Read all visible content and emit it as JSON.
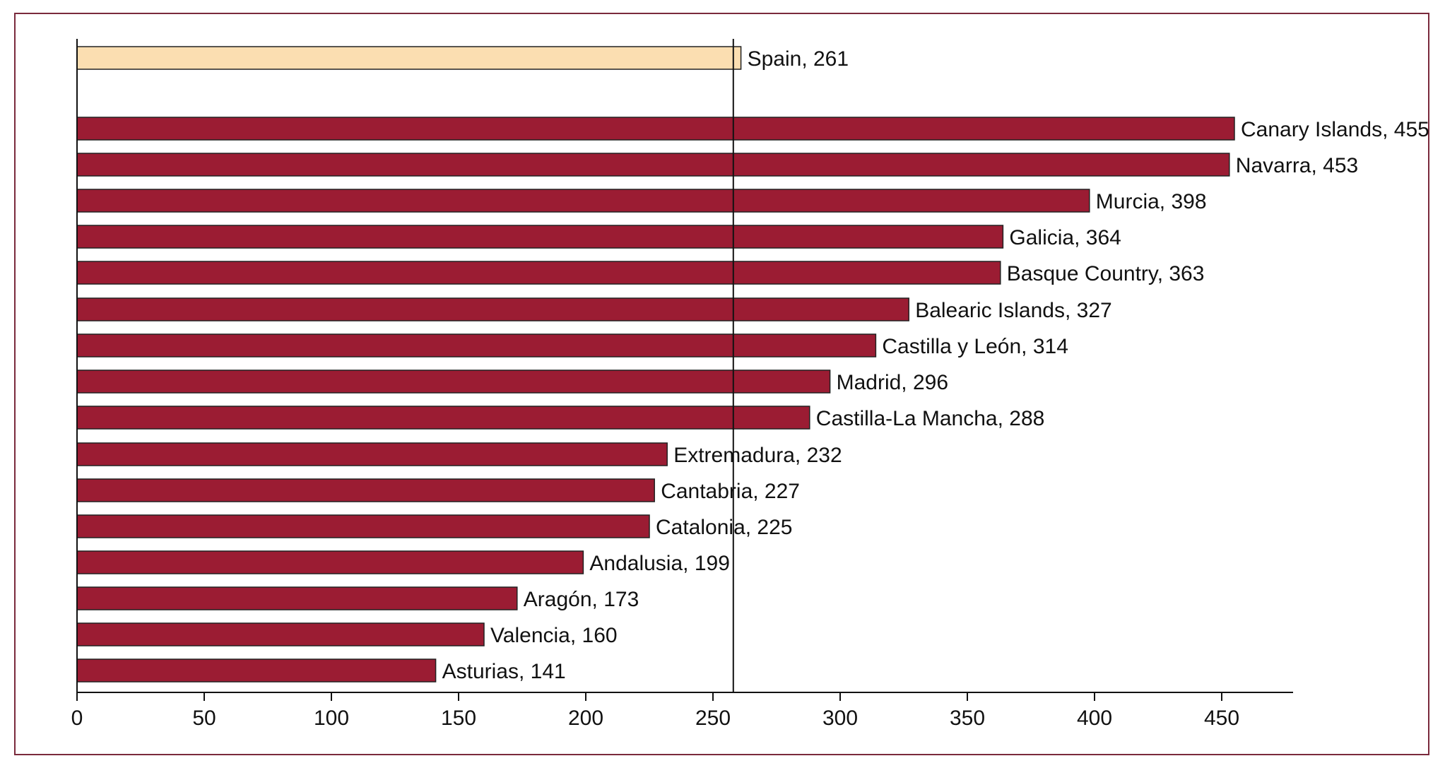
{
  "chart_data": {
    "type": "bar",
    "orientation": "horizontal",
    "categories": [
      "Spain",
      "Canary Islands",
      "Navarra",
      "Murcia",
      "Galicia",
      "Basque Country",
      "Balearic Islands",
      "Castilla y León",
      "Madrid",
      "Castilla-La Mancha",
      "Extremadura",
      "Cantabria",
      "Catalonia",
      "Andalusia",
      "Aragón",
      "Valencia",
      "Asturias"
    ],
    "values": [
      261,
      455,
      453,
      398,
      364,
      363,
      327,
      314,
      296,
      288,
      232,
      227,
      225,
      199,
      173,
      160,
      141
    ],
    "bar_labels": [
      "Spain, 261",
      "Canary Islands, 455",
      "Navarra, 453",
      "Murcia, 398",
      "Galicia, 364",
      "Basque Country, 363",
      "Balearic Islands, 327",
      "Castilla y León, 314",
      "Madrid, 296",
      "Castilla-La Mancha, 288",
      "Extremadura, 232",
      "Cantabria, 227",
      "Catalonia, 225",
      "Andalusia, 199",
      "Aragón, 173",
      "Valencia, 160",
      "Asturias, 141"
    ],
    "highlight_category": "Spain",
    "reference_line": 258,
    "xlim": [
      0,
      475
    ],
    "xticks": [
      0,
      50,
      100,
      150,
      200,
      250,
      300,
      350,
      400,
      450
    ],
    "title": "",
    "xlabel": "",
    "ylabel": "",
    "grid": false,
    "legend": "none",
    "colors": {
      "bar": "#9b1c33",
      "highlight": "#fbdeb1",
      "stroke": "#222222",
      "frame": "#7a2a3c"
    }
  }
}
